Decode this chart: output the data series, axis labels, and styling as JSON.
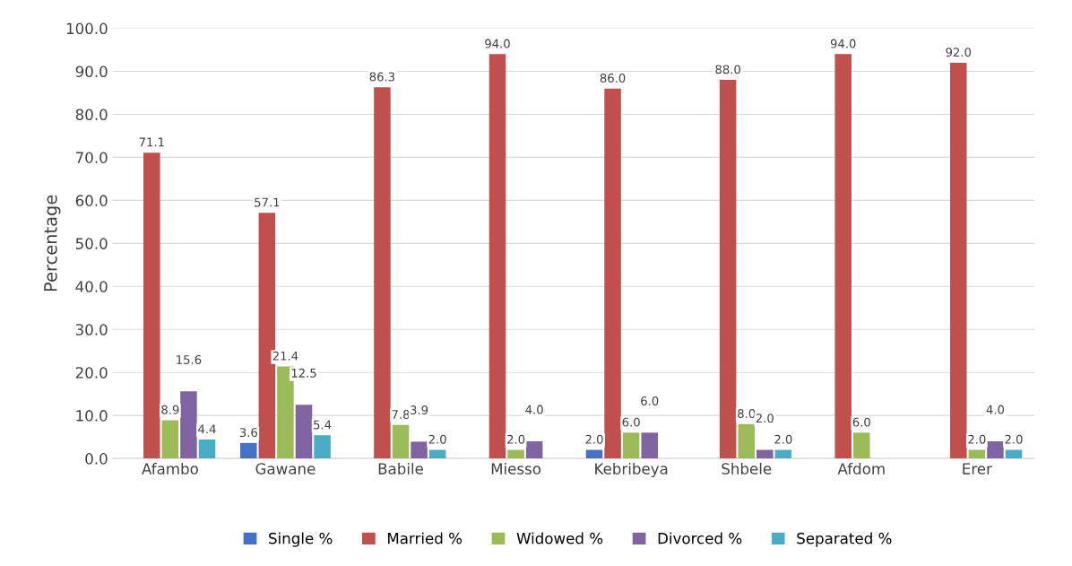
{
  "chart_data": {
    "type": "bar",
    "ylabel": "Percentage",
    "categories": [
      "Afambo",
      "Gawane",
      "Babile",
      "Miesso",
      "Kebribeya",
      "Shbele",
      "Afdom",
      "Erer"
    ],
    "series": [
      {
        "name": "Single %",
        "color": "#4472c4",
        "values": [
          null,
          3.6,
          null,
          null,
          2.0,
          null,
          null,
          null
        ],
        "value_labels": [
          null,
          "3.6",
          null,
          null,
          "2.0",
          null,
          null,
          null
        ]
      },
      {
        "name": "Married %",
        "color": "#c0504d",
        "values": [
          71.1,
          57.1,
          86.3,
          94.0,
          86.0,
          88.0,
          94.0,
          92.0
        ],
        "value_labels": [
          "71.1",
          "57.1",
          "86.3",
          "94.0",
          "86.0",
          "88.0",
          "94.0",
          "92.0"
        ]
      },
      {
        "name": "Widowed %",
        "color": "#9bbb59",
        "values": [
          8.9,
          21.4,
          7.8,
          2.0,
          6.0,
          8.0,
          6.0,
          2.0
        ],
        "value_labels": [
          "8.9",
          "21.4",
          "7.8",
          "2.0",
          "6.0",
          "8.0",
          "6.0",
          "2.0"
        ]
      },
      {
        "name": "Divorced %",
        "color": "#8064a2",
        "values": [
          15.6,
          12.5,
          3.9,
          4.0,
          6.0,
          2.0,
          null,
          4.0
        ],
        "value_labels": [
          "15.6",
          "12.5",
          "3.9",
          "4.0",
          "6.0",
          "2.0",
          null,
          "4.0"
        ]
      },
      {
        "name": "Separated %",
        "color": "#4bacc6",
        "values": [
          4.4,
          5.4,
          2.0,
          null,
          null,
          2.0,
          null,
          2.0
        ],
        "value_labels": [
          "4.4",
          "5.4",
          "2.0",
          null,
          null,
          "2.0",
          null,
          "2.0"
        ]
      }
    ],
    "ylim": [
      0,
      100
    ],
    "yticks": [
      {
        "value": 0,
        "label": "0.0"
      },
      {
        "value": 10,
        "label": "10.0"
      },
      {
        "value": 20,
        "label": "20.0"
      },
      {
        "value": 30,
        "label": "30.0"
      },
      {
        "value": 40,
        "label": "40.0"
      },
      {
        "value": 50,
        "label": "50.0"
      },
      {
        "value": 60,
        "label": "60.0"
      },
      {
        "value": 70,
        "label": "70.0"
      },
      {
        "value": 80,
        "label": "80.0"
      },
      {
        "value": 90,
        "label": "90.0"
      },
      {
        "value": 100,
        "label": "100.0"
      }
    ],
    "grid": "y",
    "legend": "bottom"
  }
}
